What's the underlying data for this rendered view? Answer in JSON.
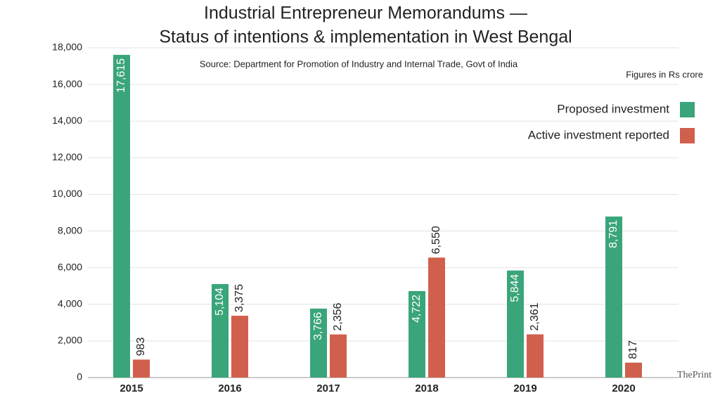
{
  "chart_data": {
    "type": "bar",
    "title": [
      "Industrial Entrepreneur Memorandums —",
      "Status of intentions & implementation in West Bengal"
    ],
    "subtitle": "Source: Department for Promotion of Industry and Internal Trade, Govt of India",
    "units_note": "Figures in Rs crore",
    "credit": "ThePrint",
    "categories": [
      "2015",
      "2016",
      "2017",
      "2018",
      "2019",
      "2020"
    ],
    "series": [
      {
        "name": "Proposed investment",
        "color": "#3aa57a",
        "values": [
          17615,
          5104,
          3766,
          4722,
          5844,
          8791
        ],
        "value_labels": [
          "17,615",
          "5,104",
          "3,766",
          "4,722",
          "5,844",
          "8,791"
        ]
      },
      {
        "name": "Active investment reported",
        "color": "#d0604d",
        "values": [
          983,
          3375,
          2356,
          6550,
          2361,
          817
        ],
        "value_labels": [
          "983",
          "3,375",
          "2,356",
          "6,550",
          "2,361",
          "817"
        ]
      }
    ],
    "ylim": [
      0,
      18000
    ],
    "yticks": [
      0,
      {
        "value": 2000,
        "label": "2,000"
      },
      {
        "value": 4000,
        "label": "4,000"
      },
      {
        "value": 6000,
        "label": "6,000"
      },
      {
        "value": 8000,
        "label": "8,000"
      },
      {
        "value": 10000,
        "label": "10,000"
      },
      {
        "value": 12000,
        "label": "12,000"
      },
      {
        "value": 14000,
        "label": "14,000"
      },
      {
        "value": 16000,
        "label": "16,000"
      },
      {
        "value": 18000,
        "label": "18,000"
      }
    ],
    "grid": true
  }
}
